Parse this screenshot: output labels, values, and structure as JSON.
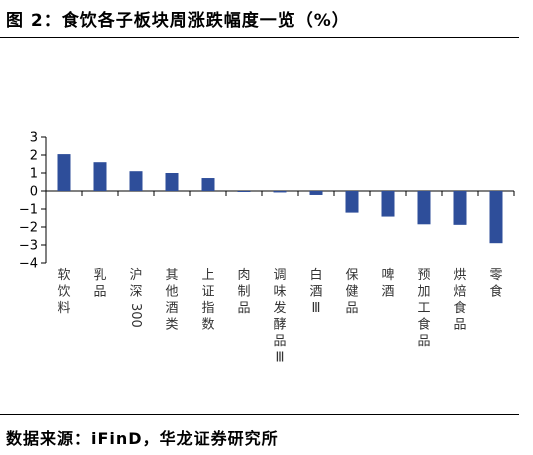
{
  "title": "图 2：食饮各子板块周涨跌幅度一览（%）",
  "source": "数据来源：iFinD，华龙证券研究所",
  "chart_data": {
    "type": "bar",
    "title": "图 2：食饮各子板块周涨跌幅度一览（%）",
    "xlabel": "",
    "ylabel": "",
    "ylim": [
      -4,
      3
    ],
    "yticks": [
      3,
      2,
      1,
      0,
      -1,
      -2,
      -3,
      -4
    ],
    "grid": false,
    "bar_color": "#2e4e9a",
    "categories": [
      "软饮料",
      "乳品",
      "沪深300",
      "其他酒类",
      "上证指数",
      "肉制品",
      "调味发酵品Ⅲ",
      "白酒Ⅲ",
      "保健品",
      "啤酒",
      "预加工食品",
      "烘焙食品",
      "零食"
    ],
    "values": [
      2.05,
      1.6,
      1.1,
      1.0,
      0.72,
      -0.05,
      -0.08,
      -0.22,
      -1.2,
      -1.42,
      -1.85,
      -1.88,
      -2.9
    ]
  }
}
